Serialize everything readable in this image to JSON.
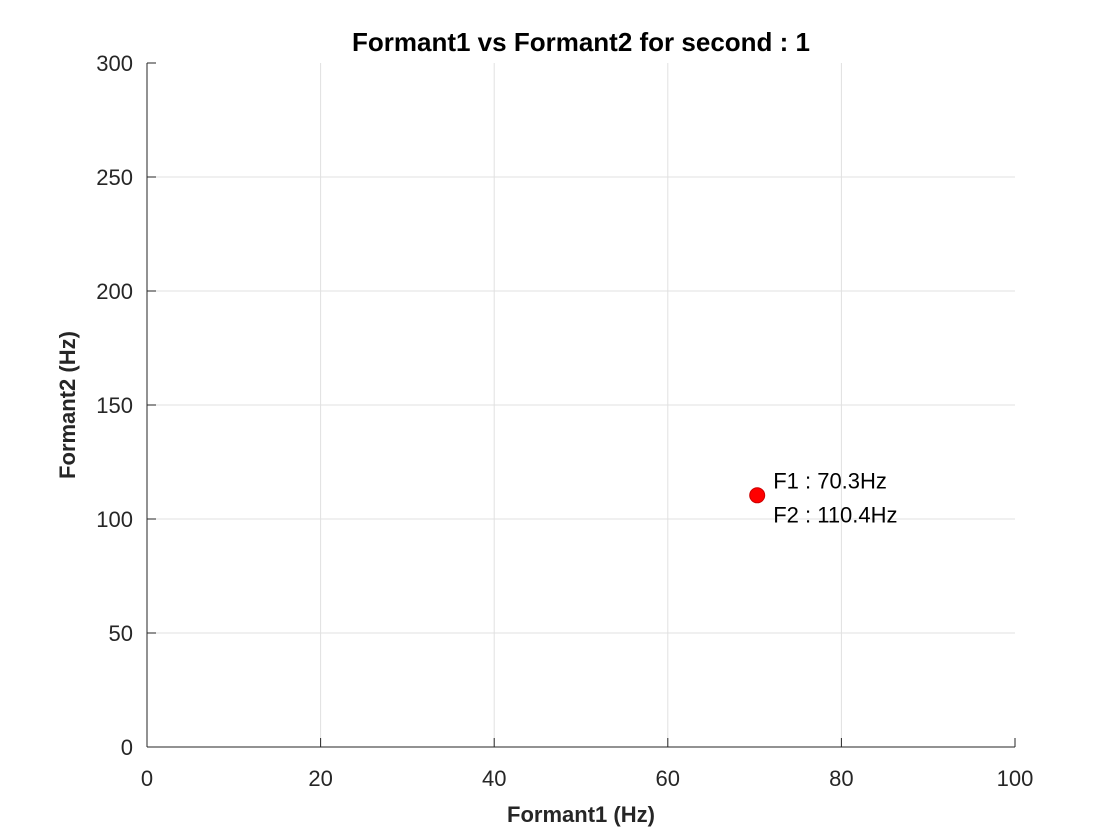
{
  "chart_data": {
    "type": "scatter",
    "title": "Formant1 vs Formant2 for second : 1",
    "xlabel": "Formant1 (Hz)",
    "ylabel": "Formant2 (Hz)",
    "xlim": [
      0,
      100
    ],
    "ylim": [
      0,
      300
    ],
    "xticks": [
      0,
      20,
      40,
      60,
      80,
      100
    ],
    "yticks": [
      0,
      50,
      100,
      150,
      200,
      250,
      300
    ],
    "grid": true,
    "points": [
      {
        "x": 70.3,
        "y": 110.4,
        "color": "#ff0000",
        "label_lines": [
          "F1 : 70.3Hz",
          "F2 : 110.4Hz"
        ]
      }
    ]
  }
}
